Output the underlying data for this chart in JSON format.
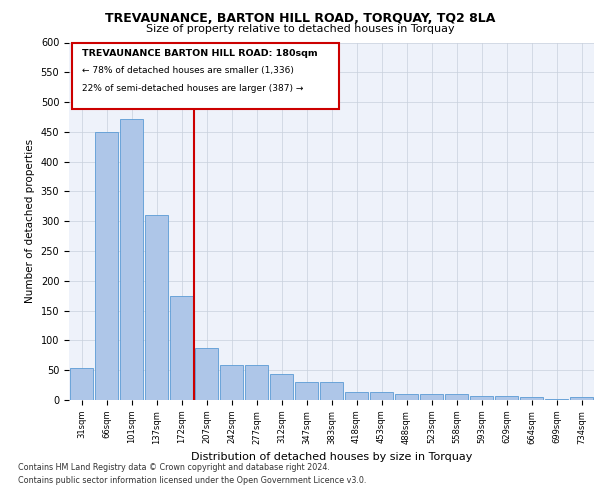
{
  "title1": "TREVAUNANCE, BARTON HILL ROAD, TORQUAY, TQ2 8LA",
  "title2": "Size of property relative to detached houses in Torquay",
  "xlabel": "Distribution of detached houses by size in Torquay",
  "ylabel": "Number of detached properties",
  "categories": [
    "31sqm",
    "66sqm",
    "101sqm",
    "137sqm",
    "172sqm",
    "207sqm",
    "242sqm",
    "277sqm",
    "312sqm",
    "347sqm",
    "383sqm",
    "418sqm",
    "453sqm",
    "488sqm",
    "523sqm",
    "558sqm",
    "593sqm",
    "629sqm",
    "664sqm",
    "699sqm",
    "734sqm"
  ],
  "values": [
    54,
    450,
    472,
    311,
    175,
    87,
    59,
    59,
    43,
    31,
    31,
    14,
    14,
    10,
    10,
    10,
    7,
    7,
    5,
    2,
    5
  ],
  "bar_color": "#aec6e8",
  "bar_edge_color": "#5b9bd5",
  "vline_x": 4.5,
  "vline_color": "#cc0000",
  "annotation_title": "TREVAUNANCE BARTON HILL ROAD: 180sqm",
  "annotation_line1": "← 78% of detached houses are smaller (1,336)",
  "annotation_line2": "22% of semi-detached houses are larger (387) →",
  "annotation_box_color": "#cc0000",
  "ylim": [
    0,
    600
  ],
  "yticks": [
    0,
    50,
    100,
    150,
    200,
    250,
    300,
    350,
    400,
    450,
    500,
    550,
    600
  ],
  "footnote1": "Contains HM Land Registry data © Crown copyright and database right 2024.",
  "footnote2": "Contains public sector information licensed under the Open Government Licence v3.0.",
  "plot_bg_color": "#eef2fa"
}
